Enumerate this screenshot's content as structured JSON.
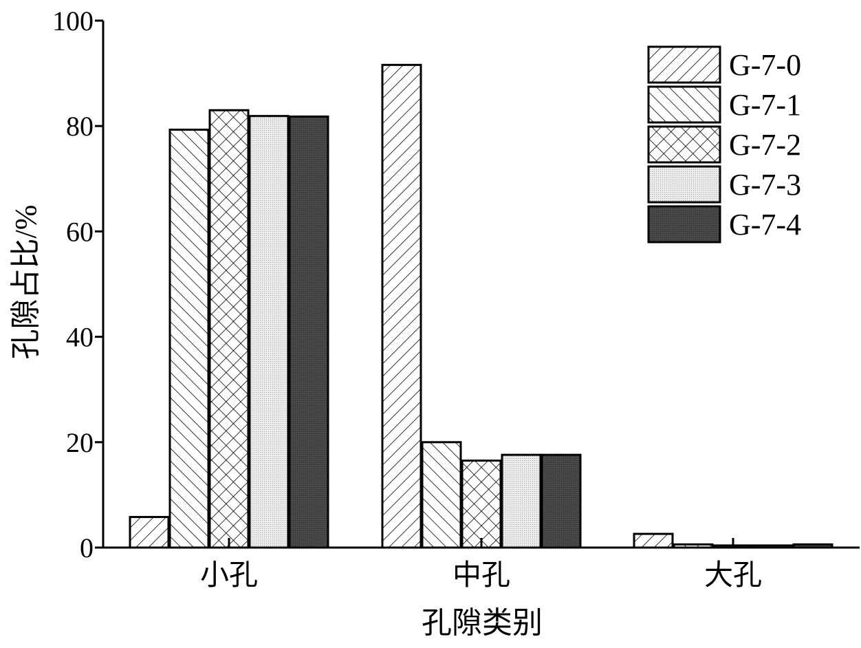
{
  "chart_data": {
    "type": "bar",
    "title": "",
    "xlabel": "孔隙类别",
    "ylabel": "孔隙占比/%",
    "categories": [
      "小孔",
      "中孔",
      "大孔"
    ],
    "ylim": [
      0,
      100
    ],
    "yticks": [
      "0",
      "20",
      "40",
      "60",
      "80",
      "100"
    ],
    "grid": false,
    "legend_position": "top-right",
    "series": [
      {
        "name": "G-7-0",
        "values": [
          5.8,
          91.6,
          2.6
        ],
        "pattern": "hatch-forward"
      },
      {
        "name": "G-7-1",
        "values": [
          79.3,
          20.0,
          0.6
        ],
        "pattern": "hatch-backward"
      },
      {
        "name": "G-7-2",
        "values": [
          83.0,
          16.5,
          0.4
        ],
        "pattern": "crosshatch"
      },
      {
        "name": "G-7-3",
        "values": [
          81.9,
          17.6,
          0.4
        ],
        "pattern": "dots-light"
      },
      {
        "name": "G-7-4",
        "values": [
          81.8,
          17.6,
          0.6
        ],
        "pattern": "dots-dark"
      }
    ]
  }
}
